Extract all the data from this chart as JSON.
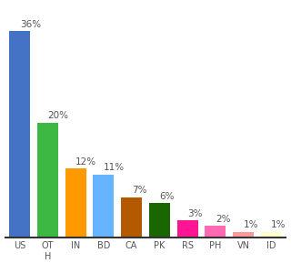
{
  "categories": [
    "US",
    "OT\nH",
    "IN",
    "BD",
    "CA",
    "PK",
    "RS",
    "PH",
    "VN",
    "ID"
  ],
  "values": [
    36,
    20,
    12,
    11,
    7,
    6,
    3,
    2,
    1,
    1
  ],
  "bar_colors": [
    "#4472c4",
    "#3cb843",
    "#ff9900",
    "#66b3ff",
    "#b35900",
    "#1a6600",
    "#ff1493",
    "#ff69b4",
    "#ff9999",
    "#ffffcc"
  ],
  "ylim": [
    0,
    40
  ],
  "background_color": "#ffffff",
  "label_fontsize": 7,
  "value_fontsize": 7.5
}
